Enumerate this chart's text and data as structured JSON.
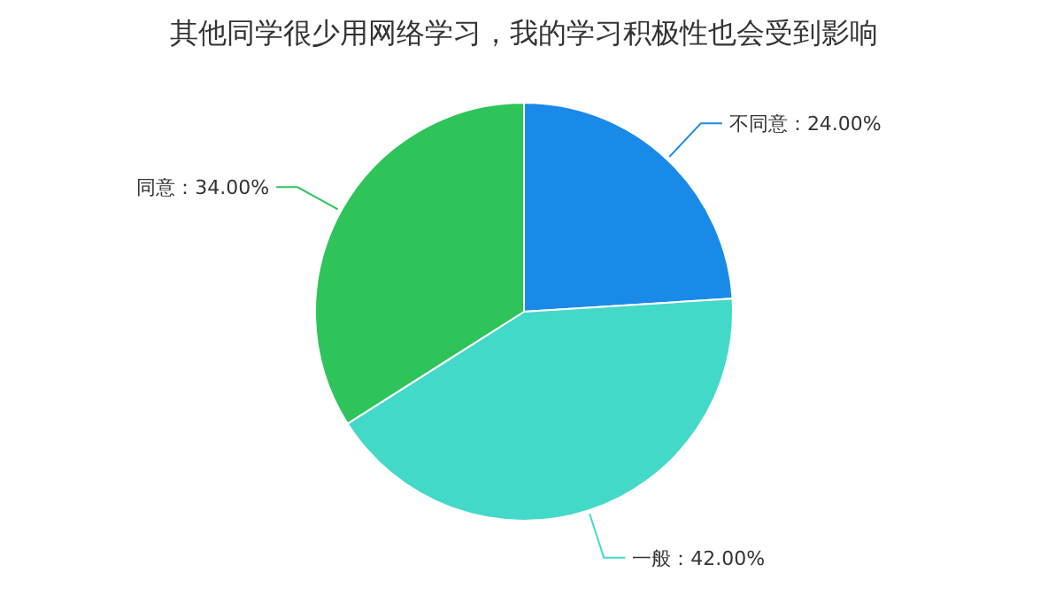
{
  "chart_data": {
    "type": "pie",
    "title": "其他同学很少用网络学习，我的学习积极性也会受到影响",
    "categories": [
      "不同意",
      "一般",
      "同意"
    ],
    "values": [
      24,
      42,
      34
    ],
    "value_labels": [
      "24.00%",
      "42.00%",
      "34.00%"
    ],
    "colors": [
      "#1a8ae8",
      "#42d9c8",
      "#2ec45a"
    ]
  }
}
